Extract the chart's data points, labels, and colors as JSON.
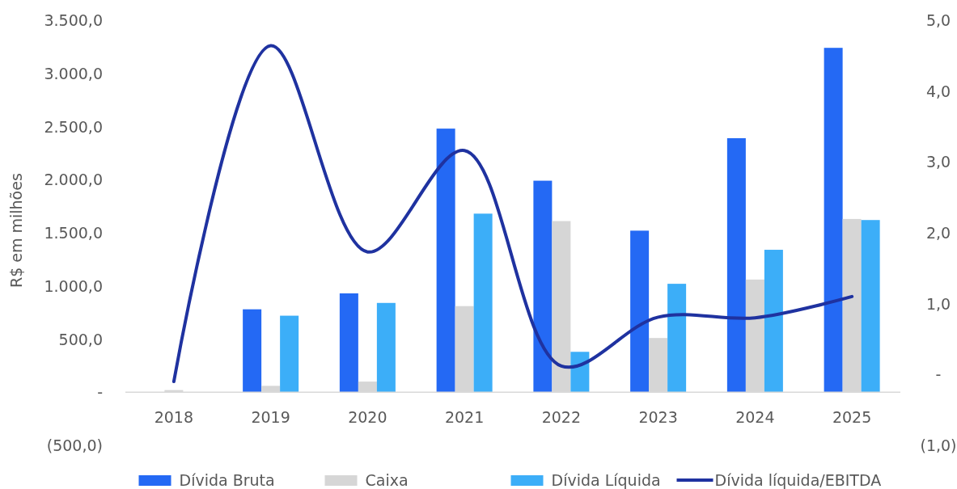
{
  "chart_data": {
    "type": "bar",
    "ylabel": "R$ em milhões",
    "categories": [
      "2018",
      "2019",
      "2020",
      "2021",
      "2022",
      "2023",
      "2024",
      "2025"
    ],
    "series": [
      {
        "name": "Dívida Bruta",
        "color": "#2469f4",
        "values": [
          0,
          780,
          930,
          2480,
          1990,
          1520,
          2390,
          3240
        ]
      },
      {
        "name": "Caixa",
        "color": "#d6d6d6",
        "values": [
          20,
          60,
          100,
          810,
          1610,
          510,
          1060,
          1630
        ]
      },
      {
        "name": "Dívida Líquida",
        "color": "#3caef8",
        "values": [
          0,
          720,
          840,
          1680,
          380,
          1020,
          1340,
          1620
        ]
      },
      {
        "name": "Dívida líquida/EBITDA",
        "type": "line",
        "axis": "y2",
        "color": "#1f32a0",
        "values": [
          -0.1,
          4.64,
          1.73,
          3.16,
          0.12,
          0.81,
          0.8,
          1.1
        ]
      }
    ],
    "ylim": [
      -500,
      3500
    ],
    "yticks": [
      {
        "value": -500,
        "label": "(500,0)"
      },
      {
        "value": 0,
        "label": "-"
      },
      {
        "value": 500,
        "label": "500,0"
      },
      {
        "value": 1000,
        "label": "1.000,0"
      },
      {
        "value": 1500,
        "label": "1.500,0"
      },
      {
        "value": 2000,
        "label": "2.000,0"
      },
      {
        "value": 2500,
        "label": "2.500,0"
      },
      {
        "value": 3000,
        "label": "3.000,0"
      },
      {
        "value": 3500,
        "label": "3.500,0"
      }
    ],
    "y2lim": [
      -1,
      5
    ],
    "y2ticks": [
      {
        "value": -1,
        "label": "(1,0)"
      },
      {
        "value": 0,
        "label": "-"
      },
      {
        "value": 1,
        "label": "1,0"
      },
      {
        "value": 2,
        "label": "2,0"
      },
      {
        "value": 3,
        "label": "3,0"
      },
      {
        "value": 4,
        "label": "4,0"
      },
      {
        "value": 5,
        "label": "5,0"
      }
    ],
    "grid": false,
    "legend": "bottom",
    "marker": "none",
    "line_style": "solid"
  }
}
